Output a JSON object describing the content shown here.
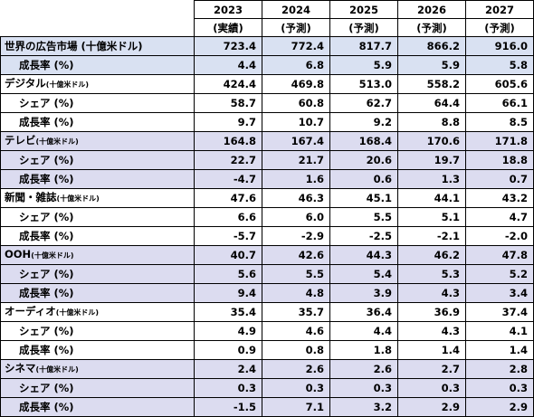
{
  "header": {
    "years": [
      "2023",
      "2024",
      "2025",
      "2026",
      "2027"
    ],
    "notes": [
      "(実績)",
      "(予測)",
      "(予測)",
      "(予測)",
      "(予測)"
    ]
  },
  "rows": [
    {
      "label": "世界の広告市場 (十億米ドル)",
      "unit": "",
      "type": "main",
      "bg": "blue",
      "values": [
        "723.4",
        "772.4",
        "817.7",
        "866.2",
        "916.0"
      ]
    },
    {
      "label": "成長率 (%)",
      "unit": "",
      "type": "sub",
      "bg": "blue",
      "values": [
        "4.4",
        "6.8",
        "5.9",
        "5.9",
        "5.8"
      ]
    },
    {
      "label": "デジタル",
      "unit": "(十億米ドル)",
      "type": "main",
      "bg": "white",
      "values": [
        "424.4",
        "469.8",
        "513.0",
        "558.2",
        "605.6"
      ]
    },
    {
      "label": "シェア (%)",
      "unit": "",
      "type": "sub",
      "bg": "white",
      "values": [
        "58.7",
        "60.8",
        "62.7",
        "64.4",
        "66.1"
      ]
    },
    {
      "label": "成長率 (%)",
      "unit": "",
      "type": "sub",
      "bg": "white",
      "values": [
        "9.7",
        "10.7",
        "9.2",
        "8.8",
        "8.5"
      ]
    },
    {
      "label": "テレビ",
      "unit": "(十億米ドル)",
      "type": "main",
      "bg": "lav",
      "values": [
        "164.8",
        "167.4",
        "168.4",
        "170.6",
        "171.8"
      ]
    },
    {
      "label": "シェア (%)",
      "unit": "",
      "type": "sub",
      "bg": "lav",
      "values": [
        "22.7",
        "21.7",
        "20.6",
        "19.7",
        "18.8"
      ]
    },
    {
      "label": "成長率 (%)",
      "unit": "",
      "type": "sub",
      "bg": "lav",
      "values": [
        "-4.7",
        "1.6",
        "0.6",
        "1.3",
        "0.7"
      ]
    },
    {
      "label": "新聞・雑誌",
      "unit": "(十億米ドル)",
      "type": "main",
      "bg": "white",
      "values": [
        "47.6",
        "46.3",
        "45.1",
        "44.1",
        "43.2"
      ]
    },
    {
      "label": "シェア (%)",
      "unit": "",
      "type": "sub",
      "bg": "white",
      "values": [
        "6.6",
        "6.0",
        "5.5",
        "5.1",
        "4.7"
      ]
    },
    {
      "label": "成長率 (%)",
      "unit": "",
      "type": "sub",
      "bg": "white",
      "values": [
        "-5.7",
        "-2.9",
        "-2.5",
        "-2.1",
        "-2.0"
      ]
    },
    {
      "label": "OOH",
      "unit": "(十億米ドル)",
      "type": "main",
      "bg": "lav",
      "values": [
        "40.7",
        "42.6",
        "44.3",
        "46.2",
        "47.8"
      ]
    },
    {
      "label": "シェア (%)",
      "unit": "",
      "type": "sub",
      "bg": "lav",
      "values": [
        "5.6",
        "5.5",
        "5.4",
        "5.3",
        "5.2"
      ]
    },
    {
      "label": "成長率 (%)",
      "unit": "",
      "type": "sub",
      "bg": "lav",
      "values": [
        "9.4",
        "4.8",
        "3.9",
        "4.3",
        "3.4"
      ]
    },
    {
      "label": "オーディオ",
      "unit": "(十億米ドル)",
      "type": "main",
      "bg": "white",
      "values": [
        "35.4",
        "35.7",
        "36.4",
        "36.9",
        "37.4"
      ]
    },
    {
      "label": "シェア (%)",
      "unit": "",
      "type": "sub",
      "bg": "white",
      "values": [
        "4.9",
        "4.6",
        "4.4",
        "4.3",
        "4.1"
      ]
    },
    {
      "label": "成長率 (%)",
      "unit": "",
      "type": "sub",
      "bg": "white",
      "values": [
        "0.9",
        "0.8",
        "1.8",
        "1.4",
        "1.4"
      ]
    },
    {
      "label": "シネマ",
      "unit": "(十億米ドル)",
      "type": "main",
      "bg": "lav",
      "values": [
        "2.4",
        "2.6",
        "2.6",
        "2.7",
        "2.8"
      ]
    },
    {
      "label": "シェア (%)",
      "unit": "",
      "type": "sub",
      "bg": "lav",
      "values": [
        "0.3",
        "0.3",
        "0.3",
        "0.3",
        "0.3"
      ]
    },
    {
      "label": "成長率 (%)",
      "unit": "",
      "type": "sub",
      "bg": "lav",
      "values": [
        "-1.5",
        "7.1",
        "3.2",
        "2.9",
        "2.9"
      ]
    }
  ],
  "colors": {
    "blue": "#d9e1f2",
    "lav": "#dcdcf0",
    "white": "#ffffff"
  }
}
